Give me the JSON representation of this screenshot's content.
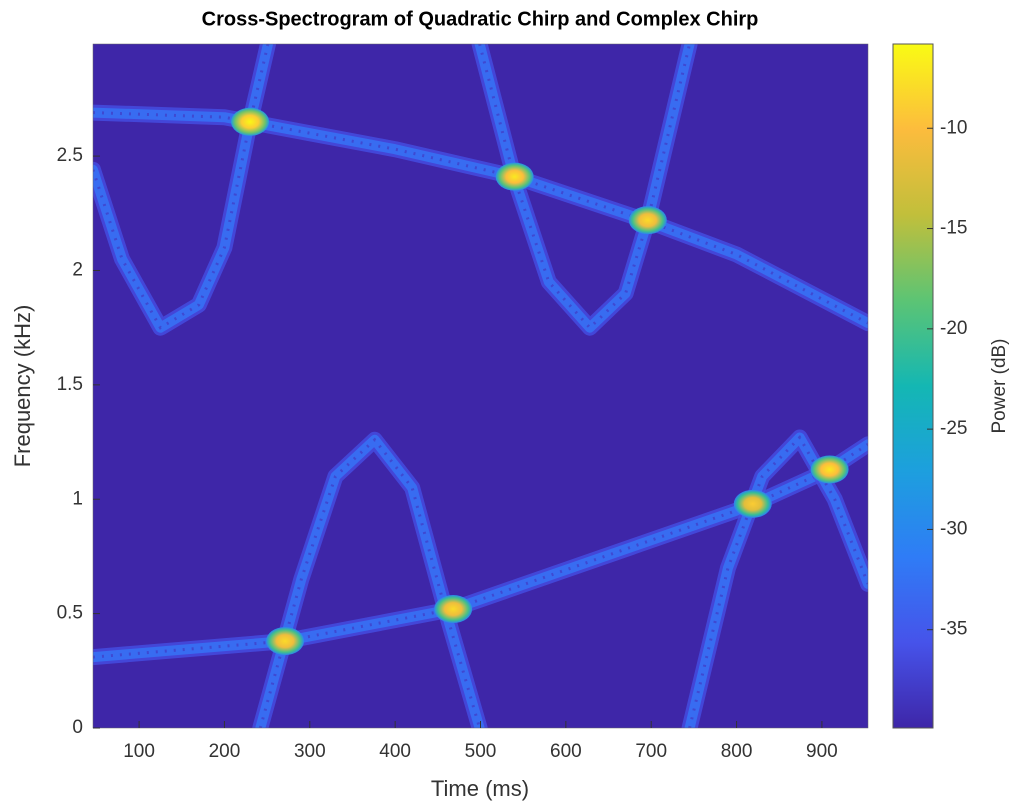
{
  "chart_data": {
    "type": "spectrogram",
    "title": "Cross-Spectrogram of Quadratic Chirp and Complex Chirp",
    "x_label": "Time (ms)",
    "y_label": "Frequency (kHz)",
    "colorbar_label": "Power (dB)",
    "xlim": [
      46,
      954
    ],
    "ylim": [
      0,
      2.99
    ],
    "clim": [
      -39.9,
      -5.8
    ],
    "xticks": [
      100,
      200,
      300,
      400,
      500,
      600,
      700,
      800,
      900
    ],
    "yticks": [
      0,
      0.5,
      1,
      1.5,
      2,
      2.5
    ],
    "cticks": [
      -35,
      -30,
      -25,
      -20,
      -15,
      -10
    ],
    "colormap": [
      "#3e26a8",
      "#4653ea",
      "#2f7cf6",
      "#1d9fde",
      "#14b7b3",
      "#5cc474",
      "#c1bf3b",
      "#fcbc3d",
      "#f9fb14"
    ],
    "ridges": [
      {
        "power": -33,
        "x": [
          46,
          200,
          300,
          400,
          540,
          700,
          800,
          954
        ],
        "values": [
          2.69,
          2.67,
          2.6,
          2.53,
          2.41,
          2.21,
          2.07,
          1.77
        ]
      },
      {
        "power": -33,
        "x": [
          46,
          80,
          125,
          170,
          200,
          230,
          251
        ],
        "values": [
          2.44,
          2.05,
          1.75,
          1.85,
          2.1,
          2.65,
          2.99
        ]
      },
      {
        "power": -33,
        "x": [
          499,
          540,
          580,
          628,
          670,
          696,
          745
        ],
        "values": [
          2.99,
          2.4,
          1.95,
          1.75,
          1.9,
          2.22,
          2.99
        ]
      },
      {
        "power": -33,
        "x": [
          46,
          271,
          468,
          815,
          909,
          954
        ],
        "values": [
          0.31,
          0.38,
          0.52,
          0.97,
          1.13,
          1.24
        ]
      },
      {
        "power": -33,
        "x": [
          242,
          290,
          330,
          376,
          420,
          460,
          499
        ],
        "values": [
          0,
          0.65,
          1.1,
          1.26,
          1.05,
          0.5,
          0
        ]
      },
      {
        "power": -33,
        "x": [
          745,
          790,
          830,
          874,
          915,
          954
        ],
        "values": [
          0,
          0.7,
          1.1,
          1.27,
          1.0,
          0.63
        ]
      }
    ],
    "peaks": {
      "x": [
        230,
        540,
        696,
        271,
        468,
        819,
        909
      ],
      "y": [
        2.65,
        2.41,
        2.22,
        0.38,
        0.52,
        0.98,
        1.13
      ],
      "power": [
        -6,
        -7,
        -8,
        -8,
        -8,
        -9,
        -7
      ]
    }
  }
}
